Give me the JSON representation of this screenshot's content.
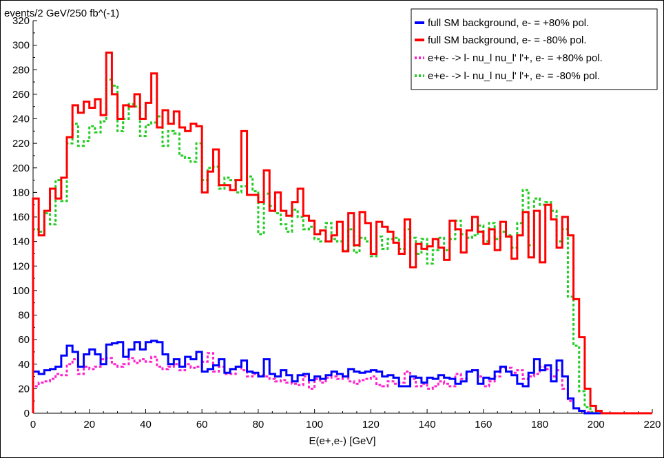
{
  "chart_data": {
    "type": "line",
    "step": true,
    "ylabel": "events/2 GeV/250 fb^(-1)",
    "xlabel": "E(e+,e-) [GeV]",
    "xlim": [
      0,
      220
    ],
    "ylim": [
      0,
      320
    ],
    "xticks": [
      0,
      20,
      40,
      60,
      80,
      100,
      120,
      140,
      160,
      180,
      200,
      220
    ],
    "yticks": [
      0,
      20,
      40,
      60,
      80,
      100,
      120,
      140,
      160,
      180,
      200,
      220,
      240,
      260,
      280,
      300,
      320
    ],
    "grid": false,
    "legend_position": "top-right",
    "bin_width": 2,
    "series": [
      {
        "name": "full SM background, e- = +80% pol.",
        "color": "#0000ff",
        "style": "solid",
        "values": [
          34,
          32,
          35,
          36,
          38,
          47,
          55,
          50,
          38,
          48,
          52,
          48,
          40,
          56,
          57,
          58,
          46,
          52,
          58,
          52,
          58,
          59,
          58,
          48,
          40,
          44,
          38,
          46,
          44,
          50,
          34,
          36,
          39,
          44,
          33,
          36,
          38,
          43,
          34,
          33,
          30,
          44,
          32,
          30,
          35,
          31,
          26,
          31,
          32,
          27,
          30,
          28,
          31,
          34,
          32,
          30,
          36,
          34,
          33,
          34,
          35,
          34,
          30,
          31,
          29,
          22,
          22,
          30,
          29,
          25,
          29,
          28,
          31,
          29,
          28,
          24,
          26,
          34,
          35,
          24,
          29,
          28,
          34,
          38,
          34,
          31,
          24,
          22,
          33,
          44,
          35,
          39,
          26,
          43,
          30,
          12,
          4,
          2,
          0,
          0,
          0,
          0,
          0,
          0,
          0,
          0,
          0,
          0,
          0,
          0
        ]
      },
      {
        "name": "full SM background, e- = -80% pol.",
        "color": "#ff0000",
        "style": "solid",
        "values": [
          175,
          145,
          165,
          183,
          175,
          192,
          225,
          251,
          245,
          254,
          249,
          256,
          243,
          294,
          260,
          240,
          251,
          250,
          260,
          240,
          253,
          277,
          233,
          247,
          236,
          246,
          233,
          230,
          236,
          234,
          180,
          197,
          215,
          186,
          186,
          182,
          190,
          230,
          178,
          178,
          172,
          198,
          165,
          180,
          165,
          161,
          172,
          183,
          161,
          157,
          146,
          149,
          140,
          145,
          156,
          132,
          163,
          137,
          164,
          155,
          130,
          156,
          152,
          148,
          139,
          130,
          158,
          119,
          138,
          134,
          136,
          142,
          135,
          125,
          157,
          150,
          131,
          149,
          160,
          148,
          138,
          150,
          133,
          156,
          144,
          126,
          145,
          164,
          127,
          165,
          123,
          170,
          158,
          135,
          160,
          145,
          93,
          62,
          20,
          6,
          2,
          0,
          0,
          0,
          0,
          0,
          0,
          0,
          0,
          0
        ]
      },
      {
        "name": "e+e- -> l- nu_l nu_l' l'+, e- = +80% pol.",
        "color": "#ff22cc",
        "style": "dashed",
        "values": [
          22,
          25,
          26,
          28,
          32,
          31,
          40,
          44,
          32,
          38,
          36,
          38,
          44,
          45,
          40,
          38,
          40,
          45,
          41,
          44,
          42,
          46,
          38,
          36,
          38,
          40,
          35,
          40,
          37,
          38,
          42,
          49,
          34,
          38,
          32,
          32,
          38,
          35,
          30,
          32,
          31,
          30,
          28,
          26,
          27,
          25,
          24,
          23,
          30,
          20,
          28,
          25,
          29,
          30,
          28,
          30,
          26,
          24,
          27,
          28,
          30,
          23,
          22,
          26,
          24,
          25,
          34,
          28,
          22,
          24,
          20,
          22,
          26,
          24,
          22,
          32,
          28,
          34,
          35,
          30,
          22,
          26,
          30,
          37,
          37,
          33,
          35,
          28,
          30,
          32,
          38,
          36,
          30,
          35,
          20,
          10,
          4,
          2,
          1,
          0,
          0,
          0,
          0,
          0,
          0,
          0,
          0,
          0,
          0,
          0
        ]
      },
      {
        "name": "e+e- -> l- nu_l nu_l' l'+, e- = -80% pol.",
        "color": "#22cc22",
        "style": "dashed",
        "values": [
          150,
          148,
          163,
          154,
          190,
          173,
          220,
          236,
          218,
          222,
          234,
          229,
          238,
          272,
          267,
          230,
          240,
          252,
          250,
          226,
          235,
          237,
          242,
          218,
          230,
          228,
          210,
          208,
          205,
          220,
          190,
          200,
          201,
          183,
          192,
          190,
          180,
          185,
          193,
          181,
          146,
          179,
          169,
          163,
          154,
          148,
          166,
          160,
          150,
          152,
          142,
          140,
          155,
          142,
          140,
          133,
          150,
          131,
          143,
          140,
          128,
          144,
          134,
          142,
          143,
          134,
          150,
          143,
          130,
          142,
          122,
          133,
          143,
          133,
          142,
          157,
          146,
          143,
          145,
          153,
          140,
          155,
          142,
          148,
          145,
          135,
          155,
          182,
          137,
          175,
          170,
          172,
          165,
          140,
          150,
          95,
          55,
          18,
          5,
          1,
          0,
          0,
          0,
          0,
          0,
          0,
          0,
          0,
          0,
          0
        ]
      }
    ]
  }
}
